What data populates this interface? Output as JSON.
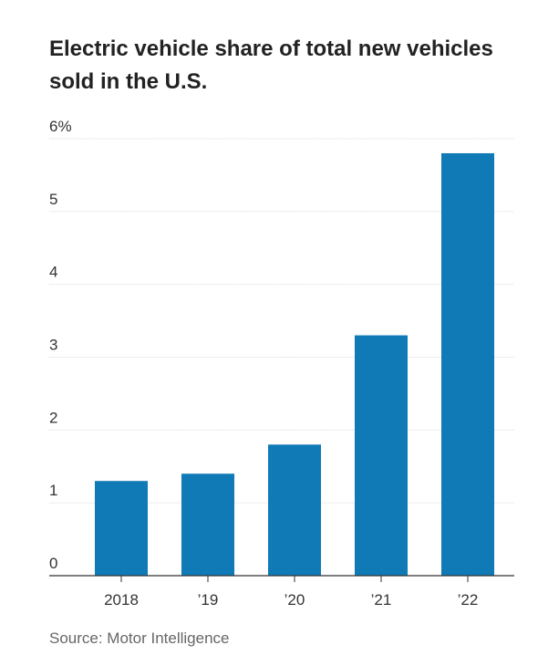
{
  "title": "Electric vehicle share of total new vehicles sold in the U.S.",
  "source": "Source: Motor Intelligence",
  "colors": {
    "bar": "#0f7ab5",
    "grid": "#dddddd",
    "axis": "#333333",
    "text": "#222222",
    "muted": "#666666"
  },
  "chart_data": {
    "type": "bar",
    "title": "Electric vehicle share of total new vehicles sold in the U.S.",
    "categories": [
      "2018",
      "’19",
      "’20",
      "’21",
      "’22"
    ],
    "values": [
      1.3,
      1.4,
      1.8,
      3.3,
      5.8
    ],
    "ylim": [
      0,
      6
    ],
    "yticks": [
      0,
      1,
      2,
      3,
      4,
      5,
      6
    ],
    "ytick_labels": [
      "0",
      "1",
      "2",
      "3",
      "4",
      "5",
      "6%"
    ],
    "xlabel": "",
    "ylabel": "",
    "grid": true,
    "legend": "none"
  }
}
